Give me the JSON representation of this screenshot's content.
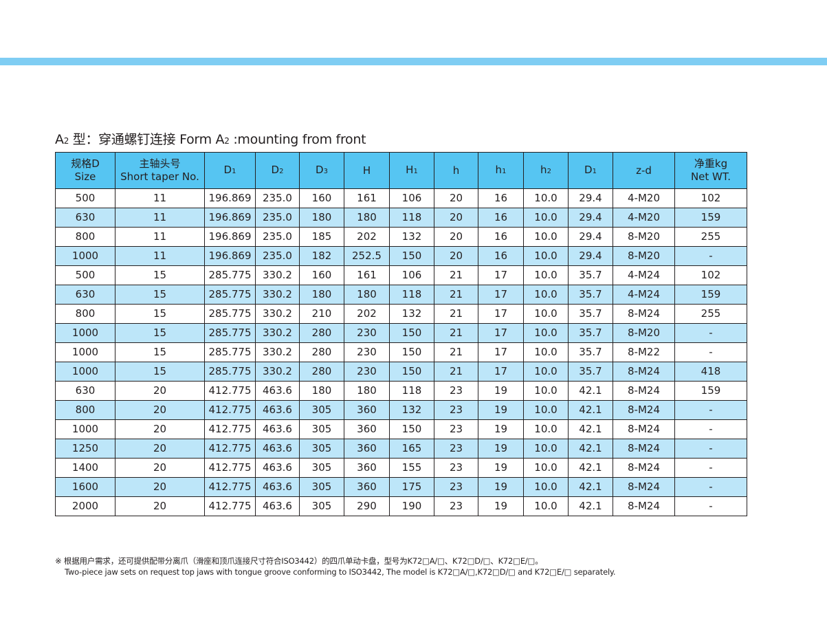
{
  "colors": {
    "band": "#7fcdf3",
    "header_bg": "#56c5f2",
    "alt_row_bg": "#bde6f9"
  },
  "title": {
    "prefix": "A",
    "prefix_sub": "2",
    "text": " 型：穿通螺钉连接 Form A",
    "text_sub": "2",
    "suffix": " :mounting from front"
  },
  "table": {
    "headers": [
      {
        "l1": "规格D",
        "l2": "Size"
      },
      {
        "l1": "主轴头号",
        "l2": "Short taper No."
      },
      {
        "l1": "D",
        "sub": "1"
      },
      {
        "l1": "D",
        "sub": "2"
      },
      {
        "l1": "D",
        "sub": "3"
      },
      {
        "l1": "H"
      },
      {
        "l1": "H",
        "sub": "1"
      },
      {
        "l1": "h"
      },
      {
        "l1": "h",
        "sub": "1"
      },
      {
        "l1": "h",
        "sub": "2"
      },
      {
        "l1": "D",
        "sub": "1"
      },
      {
        "l1": "z-d"
      },
      {
        "l1": "净重kg",
        "l2": "Net WT."
      }
    ],
    "rows": [
      [
        "500",
        "11",
        "196.869",
        "235.0",
        "160",
        "161",
        "106",
        "20",
        "16",
        "10.0",
        "29.4",
        "4-M20",
        "102"
      ],
      [
        "630",
        "11",
        "196.869",
        "235.0",
        "180",
        "180",
        "118",
        "20",
        "16",
        "10.0",
        "29.4",
        "4-M20",
        "159"
      ],
      [
        "800",
        "11",
        "196.869",
        "235.0",
        "185",
        "202",
        "132",
        "20",
        "16",
        "10.0",
        "29.4",
        "8-M20",
        "255"
      ],
      [
        "1000",
        "11",
        "196.869",
        "235.0",
        "182",
        "252.5",
        "150",
        "20",
        "16",
        "10.0",
        "29.4",
        "8-M20",
        "-"
      ],
      [
        "500",
        "15",
        "285.775",
        "330.2",
        "160",
        "161",
        "106",
        "21",
        "17",
        "10.0",
        "35.7",
        "4-M24",
        "102"
      ],
      [
        "630",
        "15",
        "285.775",
        "330.2",
        "180",
        "180",
        "118",
        "21",
        "17",
        "10.0",
        "35.7",
        "4-M24",
        "159"
      ],
      [
        "800",
        "15",
        "285.775",
        "330.2",
        "210",
        "202",
        "132",
        "21",
        "17",
        "10.0",
        "35.7",
        "8-M24",
        "255"
      ],
      [
        "1000",
        "15",
        "285.775",
        "330.2",
        "280",
        "230",
        "150",
        "21",
        "17",
        "10.0",
        "35.7",
        "8-M20",
        "-"
      ],
      [
        "1000",
        "15",
        "285.775",
        "330.2",
        "280",
        "230",
        "150",
        "21",
        "17",
        "10.0",
        "35.7",
        "8-M22",
        "-"
      ],
      [
        "1000",
        "15",
        "285.775",
        "330.2",
        "280",
        "230",
        "150",
        "21",
        "17",
        "10.0",
        "35.7",
        "8-M24",
        "418"
      ],
      [
        "630",
        "20",
        "412.775",
        "463.6",
        "180",
        "180",
        "118",
        "23",
        "19",
        "10.0",
        "42.1",
        "8-M24",
        "159"
      ],
      [
        "800",
        "20",
        "412.775",
        "463.6",
        "305",
        "360",
        "132",
        "23",
        "19",
        "10.0",
        "42.1",
        "8-M24",
        "-"
      ],
      [
        "1000",
        "20",
        "412.775",
        "463.6",
        "305",
        "360",
        "150",
        "23",
        "19",
        "10.0",
        "42.1",
        "8-M24",
        "-"
      ],
      [
        "1250",
        "20",
        "412.775",
        "463.6",
        "305",
        "360",
        "165",
        "23",
        "19",
        "10.0",
        "42.1",
        "8-M24",
        "-"
      ],
      [
        "1400",
        "20",
        "412.775",
        "463.6",
        "305",
        "360",
        "155",
        "23",
        "19",
        "10.0",
        "42.1",
        "8-M24",
        "-"
      ],
      [
        "1600",
        "20",
        "412.775",
        "463.6",
        "305",
        "360",
        "175",
        "23",
        "19",
        "10.0",
        "42.1",
        "8-M24",
        "-"
      ],
      [
        "2000",
        "20",
        "412.775",
        "463.6",
        "305",
        "290",
        "190",
        "23",
        "19",
        "10.0",
        "42.1",
        "8-M24",
        "-"
      ]
    ]
  },
  "note": {
    "line1": "※ 根据用户需求，还可提供配带分离爪（滑座和顶爪连接尺寸符合ISO3442）的四爪单动卡盘，型号为K72□A/□、K72□D/□、K72□E/□。",
    "line2": "Two-piece jaw sets on request top jaws with tongue groove conforming to ISO3442, The model is K72□A/□,K72□D/□ and K72□E/□ separately."
  }
}
